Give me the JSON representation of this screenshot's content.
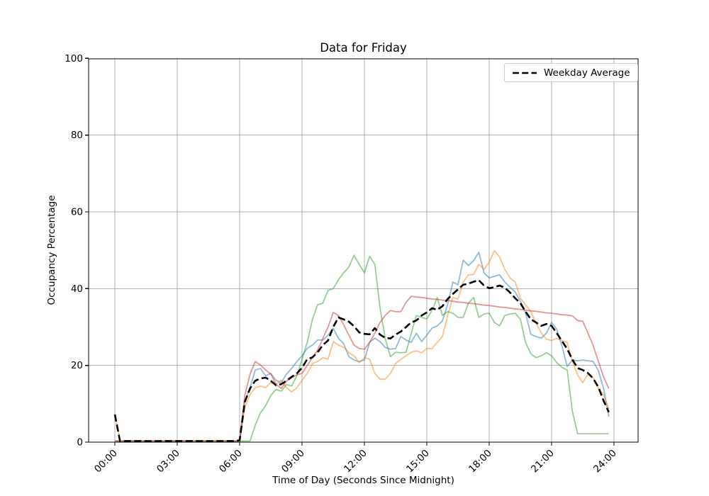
{
  "chart_data": {
    "type": "line",
    "title": "Data for Friday",
    "xlabel": "Time of Day (Seconds Since Midnight)",
    "ylabel": "Occupancy Percentage",
    "grid": true,
    "ylim": [
      0,
      100
    ],
    "y_ticks": [
      0,
      20,
      40,
      60,
      80,
      100
    ],
    "x_tick_hours": [
      0,
      3,
      6,
      9,
      12,
      15,
      18,
      21,
      24
    ],
    "x_tick_labels": [
      "00:00",
      "03:00",
      "06:00",
      "09:00",
      "12:00",
      "15:00",
      "18:00",
      "21:00",
      "24:00"
    ],
    "x_start_hour": 0,
    "x_step_hours": 0.25,
    "sample_interval_minutes": 15,
    "legend": {
      "label": "Weekday Average",
      "position": "upper right"
    },
    "colors": {
      "grid": "#b0b0b0",
      "spine": "#000000",
      "background": "#ffffff",
      "average_line": "#000000",
      "series_blue": "#1f77b4",
      "series_orange": "#ff7f0e",
      "series_green": "#2ca02c",
      "series_red": "#d62728"
    },
    "series": [
      {
        "label": "",
        "color": "#1f77b4",
        "opacity": 0.5,
        "line_style": "solid",
        "line_width": 1.8,
        "values": [
          0.3,
          0.3,
          0.3,
          0.3,
          0.3,
          0.3,
          0.3,
          0.3,
          0.3,
          0.3,
          0.3,
          0.3,
          0.3,
          0.3,
          0.3,
          0.3,
          0.3,
          0.3,
          0.3,
          0.3,
          0.3,
          0.3,
          0.3,
          0.3,
          0.3,
          10.5,
          14.2,
          18.8,
          19.2,
          17.3,
          17.9,
          16.1,
          15.5,
          17.7,
          19.2,
          21,
          22.5,
          24.4,
          25.3,
          26.6,
          26.6,
          27.9,
          29.7,
          27,
          25.7,
          22.3,
          21.4,
          21,
          21.4,
          26,
          27.1,
          26.2,
          24.7,
          24.2,
          24.4,
          27.5,
          26.6,
          26,
          28.4,
          26.2,
          27.9,
          29.7,
          30.3,
          31.6,
          35.8,
          41.7,
          41,
          47.4,
          46,
          47.3,
          49.5,
          44.1,
          42.8,
          43.2,
          43.6,
          41.7,
          40.4,
          39.1,
          36.7,
          33.6,
          28.1,
          27.5,
          27.1,
          28.4,
          31.2,
          29.4,
          25,
          19.7,
          21.4,
          21.2,
          21.4,
          21.2,
          21,
          18.6,
          14,
          6.6
        ]
      },
      {
        "label": "",
        "color": "#ff7f0e",
        "opacity": 0.5,
        "line_style": "solid",
        "line_width": 1.8,
        "values": [
          7.5,
          0.3,
          0.3,
          0.3,
          0.3,
          0.3,
          0.3,
          0.3,
          0.3,
          0.3,
          0.3,
          0.3,
          0.3,
          0.3,
          0.3,
          0.3,
          0.3,
          0.3,
          0.3,
          0.3,
          0.3,
          0.3,
          0.3,
          0.3,
          0.3,
          9,
          12.4,
          14.2,
          14.6,
          14.2,
          15.5,
          15.1,
          16.1,
          14.2,
          13.1,
          14.2,
          16.1,
          17.9,
          20.5,
          21,
          22,
          21.6,
          26.2,
          25.3,
          24.7,
          23.3,
          22.5,
          20.7,
          22,
          21.6,
          17.9,
          16.4,
          16.4,
          17.9,
          20.5,
          21.6,
          22.5,
          23.4,
          23.8,
          23.3,
          24.4,
          24.4,
          26,
          27.5,
          33,
          37.7,
          37.3,
          41.7,
          43.6,
          43.7,
          46.3,
          45,
          46.9,
          49.9,
          48.2,
          45,
          42.8,
          41.7,
          37.5,
          35.8,
          34,
          31,
          28.5,
          26.8,
          26.5,
          27,
          26.5,
          26,
          21,
          17.5,
          15.5,
          17.7,
          16.8,
          14,
          12.4,
          8.7
        ]
      },
      {
        "label": "",
        "color": "#2ca02c",
        "opacity": 0.5,
        "line_style": "solid",
        "line_width": 1.8,
        "values": [
          0.3,
          0.3,
          0.3,
          0.3,
          0.3,
          0.3,
          0.3,
          0.3,
          0.3,
          0.3,
          0.3,
          0.3,
          0.3,
          0.3,
          0.3,
          0.3,
          0.3,
          0.3,
          0.3,
          0.3,
          0.3,
          0.3,
          0.3,
          0.3,
          0.3,
          0.3,
          0.3,
          4.4,
          7.6,
          9.5,
          12.2,
          13.7,
          13.3,
          15,
          14.6,
          17.3,
          21.6,
          26,
          32,
          35.8,
          36.2,
          39.5,
          40,
          42.3,
          44.1,
          45.6,
          48.7,
          46.3,
          44.1,
          48.4,
          46.3,
          35,
          27,
          22.3,
          23.4,
          23.3,
          23.4,
          28.4,
          33,
          32.5,
          32.1,
          34.3,
          37.7,
          33,
          34,
          33.6,
          32.5,
          32.5,
          36.2,
          37.7,
          32.5,
          33.4,
          33.6,
          31.2,
          30.3,
          33,
          33.4,
          33.6,
          32,
          26,
          23,
          22,
          22.5,
          23.3,
          22.5,
          20.7,
          19.5,
          18.8,
          8,
          2.2,
          2.2,
          2.2,
          2.2,
          2.2,
          2.2,
          2.2
        ]
      },
      {
        "label": "",
        "color": "#d62728",
        "opacity": 0.5,
        "line_style": "solid",
        "line_width": 1.8,
        "values": [
          0.3,
          0.3,
          0.3,
          0.3,
          0.3,
          0.3,
          0.3,
          0.3,
          0.3,
          0.3,
          0.3,
          0.3,
          0.3,
          0.3,
          0.3,
          0.3,
          0.3,
          0.3,
          0.3,
          0.3,
          0.3,
          0.3,
          0.3,
          0.3,
          0.3,
          12.2,
          17.7,
          21,
          20.1,
          18.8,
          17.7,
          15.1,
          14,
          15.9,
          16.8,
          17.5,
          17.9,
          20,
          22,
          24,
          27,
          30,
          33.8,
          33,
          30.6,
          27.9,
          25.3,
          24.4,
          24.2,
          26,
          28.4,
          31.2,
          33,
          34.3,
          34,
          34,
          36.4,
          38,
          37.8,
          37.7,
          37.5,
          37.3,
          37.2,
          37,
          36.9,
          36.7,
          36.5,
          36.4,
          36.2,
          36.1,
          35.9,
          35.7,
          35.6,
          35.4,
          35.2,
          35.1,
          34.9,
          34.7,
          34.6,
          34.4,
          34.2,
          34.1,
          33.9,
          33.7,
          33.6,
          33.4,
          33.2,
          33.1,
          32.9,
          31.7,
          31.5,
          28.4,
          25.1,
          21,
          17,
          14
        ]
      },
      {
        "label": "Weekday Average",
        "color": "#000000",
        "opacity": 1,
        "line_style": "dashed",
        "line_width": 2.6,
        "values": [
          7.2,
          0.3,
          0.3,
          0.3,
          0.3,
          0.3,
          0.3,
          0.3,
          0.3,
          0.3,
          0.3,
          0.3,
          0.3,
          0.3,
          0.3,
          0.3,
          0.3,
          0.3,
          0.3,
          0.3,
          0.3,
          0.3,
          0.3,
          0.3,
          0.5,
          10.5,
          14,
          16,
          16.6,
          16.8,
          16,
          14.8,
          15.1,
          16,
          17,
          17.9,
          19.4,
          21.6,
          22.1,
          23.4,
          25.3,
          26.5,
          30,
          32.5,
          32,
          31.4,
          30.2,
          28.6,
          28.2,
          28.1,
          29.7,
          28,
          27.2,
          27,
          28,
          28.8,
          30,
          31.2,
          31.7,
          33,
          33.8,
          34.9,
          34.5,
          35.4,
          37.3,
          38.6,
          39.8,
          41,
          41.3,
          41.8,
          42.2,
          40.8,
          40.1,
          40.4,
          40.8,
          40.2,
          39,
          37.5,
          36.2,
          34,
          32,
          31.2,
          30.3,
          30.8,
          30.3,
          28.4,
          26.3,
          24.3,
          21.5,
          19.3,
          18.8,
          18,
          16.6,
          14.3,
          10.8,
          7.8
        ]
      }
    ]
  }
}
